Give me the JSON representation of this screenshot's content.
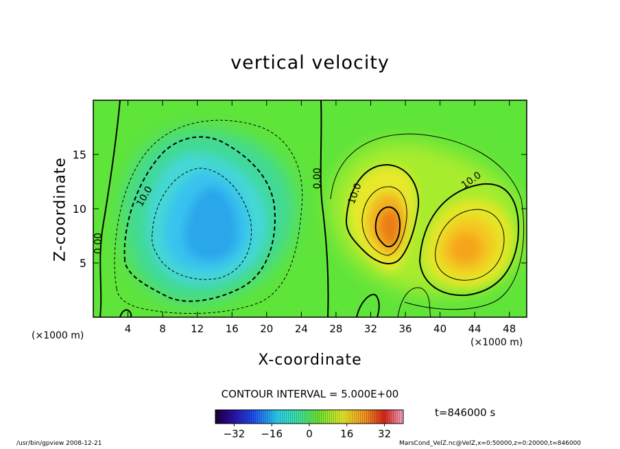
{
  "chart_data": {
    "type": "heatmap",
    "title": "vertical velocity",
    "xlabel": "X-coordinate",
    "ylabel": "Z-coordinate",
    "x_unit_label": "(×1000 m)",
    "xlim": [
      0,
      50
    ],
    "ylim": [
      0,
      20
    ],
    "x_ticks": [
      4,
      8,
      12,
      16,
      20,
      24,
      28,
      32,
      36,
      40,
      44,
      48
    ],
    "y_ticks": [
      5,
      10,
      15
    ],
    "contour_interval_label": "CONTOUR INTERVAL = 5.000E+00",
    "contour_labels": [
      {
        "text": "10.0",
        "x": 6.2,
        "z": 11.0
      },
      {
        "text": "0.00",
        "x": 26.2,
        "z": 12.8
      },
      {
        "text": "10.0",
        "x": 30.5,
        "z": 11.3
      },
      {
        "text": "10.0",
        "x": 43.8,
        "z": 12.4
      },
      {
        "text": "0.00",
        "x": 0.9,
        "z": 6.8
      }
    ],
    "colorbar": {
      "range": [
        -40,
        40
      ],
      "ticks": [
        -32,
        -16,
        0,
        16,
        32
      ],
      "tick_labels": [
        "−32",
        "−16",
        "0",
        "16",
        "32"
      ]
    },
    "time_label": "t=846000 s",
    "features": [
      {
        "kind": "downdraft",
        "x": 14,
        "z": 9,
        "peak": -22
      },
      {
        "kind": "updraft",
        "x": 34,
        "z": 8.5,
        "peak": 28
      },
      {
        "kind": "updraft",
        "x": 42,
        "z": 7.5,
        "peak": 22
      }
    ]
  },
  "footer": {
    "left": "/usr/bin/gpview   2008-12-21",
    "right": "MarsCond_VelZ.nc@VelZ,x=0:50000,z=0:20000,t=846000"
  }
}
